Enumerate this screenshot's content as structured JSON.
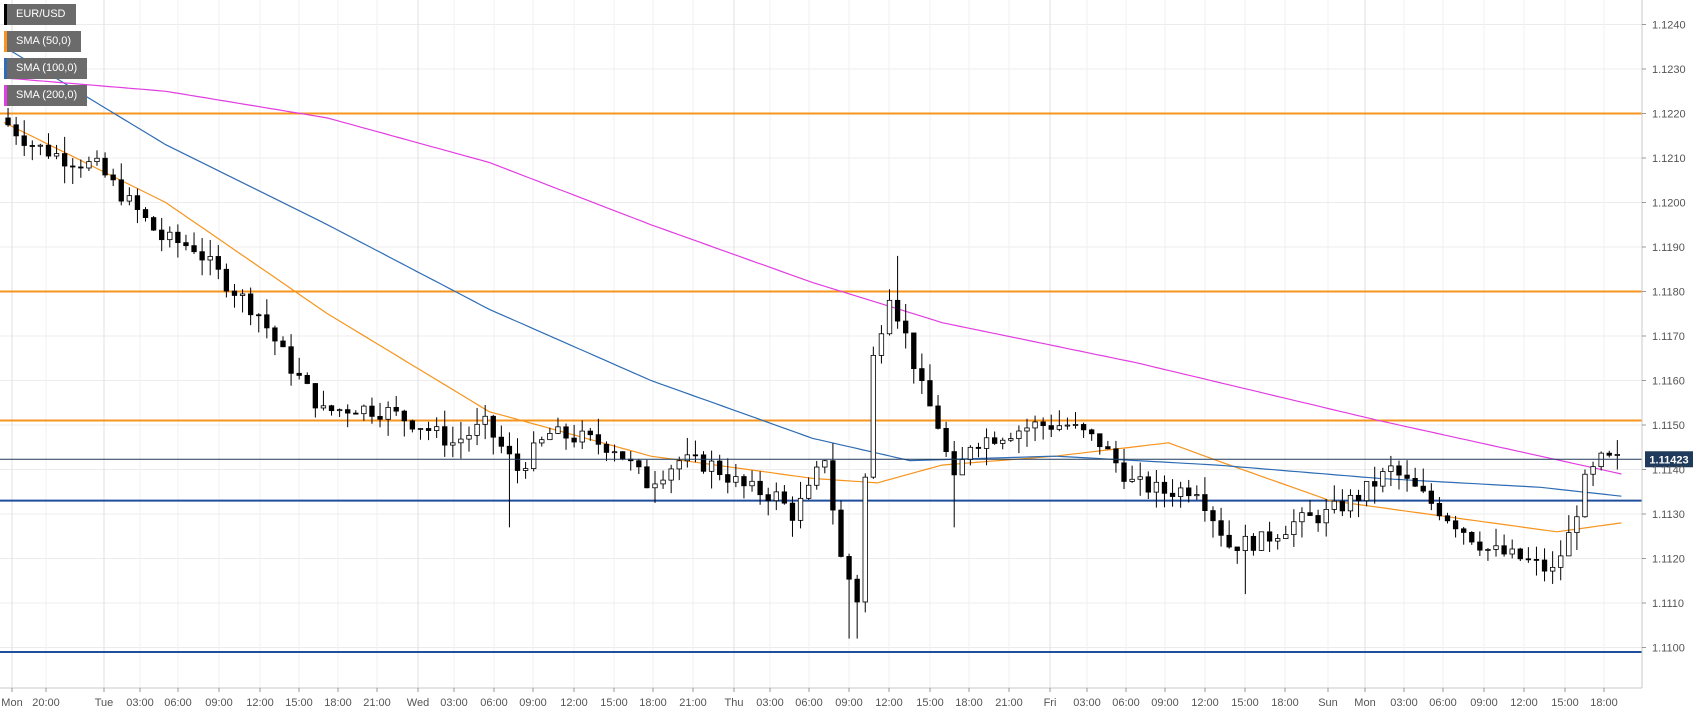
{
  "chart_data": {
    "type": "candlestick",
    "title": "EUR/USD",
    "legend": [
      {
        "label": "EUR/USD",
        "color": "#000000"
      },
      {
        "label": "SMA (50,0)",
        "color": "#f7941d"
      },
      {
        "label": "SMA (100,0)",
        "color": "#2e6db5"
      },
      {
        "label": "SMA (200,0)",
        "color": "#e23de2"
      }
    ],
    "legend_position": "top-left",
    "y_axis": {
      "side": "right",
      "range": [
        1.109,
        1.1245
      ],
      "ticks": [
        "1.1100",
        "1.1110",
        "1.1120",
        "1.1130",
        "1.1140",
        "1.1150",
        "1.1160",
        "1.1170",
        "1.1180",
        "1.1190",
        "1.1200",
        "1.1210",
        "1.1220",
        "1.1230",
        "1.1240"
      ]
    },
    "x_axis": {
      "ticks": [
        "Mon",
        "20:00",
        "Tue",
        "03:00",
        "06:00",
        "09:00",
        "12:00",
        "15:00",
        "18:00",
        "21:00",
        "Wed",
        "03:00",
        "06:00",
        "09:00",
        "12:00",
        "15:00",
        "18:00",
        "21:00",
        "Thu",
        "03:00",
        "06:00",
        "09:00",
        "12:00",
        "15:00",
        "18:00",
        "21:00",
        "Fri",
        "03:00",
        "06:00",
        "09:00",
        "12:00",
        "15:00",
        "18:00",
        "Sun",
        "Mon",
        "03:00",
        "06:00",
        "09:00",
        "12:00",
        "15:00",
        "18:00"
      ],
      "day_separators": [
        "Tue",
        "Wed",
        "Thu",
        "Fri",
        "Mon"
      ]
    },
    "grid": true,
    "current_price": {
      "label": "1.11423",
      "value": 1.11423
    },
    "horizontal_levels": [
      {
        "value": 1.122,
        "color": "#f7941d"
      },
      {
        "value": 1.118,
        "color": "#f7941d"
      },
      {
        "value": 1.1151,
        "color": "#f7941d"
      },
      {
        "value": 1.1133,
        "color": "#1f4e9c"
      },
      {
        "value": 1.1099,
        "color": "#1f4e9c"
      }
    ],
    "price_anchors": [
      [
        0,
        1.1219
      ],
      [
        4,
        1.1213
      ],
      [
        8,
        1.121
      ],
      [
        12,
        1.1208
      ],
      [
        16,
        1.12
      ],
      [
        20,
        1.1192
      ],
      [
        24,
        1.119
      ],
      [
        28,
        1.1182
      ],
      [
        32,
        1.1175
      ],
      [
        36,
        1.1163
      ],
      [
        40,
        1.1153
      ],
      [
        44,
        1.1154
      ],
      [
        48,
        1.1153
      ],
      [
        52,
        1.115
      ],
      [
        56,
        1.1146
      ],
      [
        60,
        1.115
      ],
      [
        64,
        1.114
      ],
      [
        68,
        1.1148
      ],
      [
        72,
        1.1147
      ],
      [
        76,
        1.1145
      ],
      [
        80,
        1.1137
      ],
      [
        84,
        1.1142
      ],
      [
        88,
        1.1141
      ],
      [
        92,
        1.1136
      ],
      [
        96,
        1.1134
      ],
      [
        98,
        1.113
      ],
      [
        100,
        1.1135
      ],
      [
        102,
        1.1143
      ],
      [
        104,
        1.112
      ],
      [
        106,
        1.1111
      ],
      [
        108,
        1.1165
      ],
      [
        110,
        1.118
      ],
      [
        112,
        1.117
      ],
      [
        114,
        1.1158
      ],
      [
        116,
        1.115
      ],
      [
        118,
        1.1137
      ],
      [
        120,
        1.1146
      ],
      [
        124,
        1.1148
      ],
      [
        128,
        1.115
      ],
      [
        132,
        1.115
      ],
      [
        136,
        1.1146
      ],
      [
        140,
        1.1137
      ],
      [
        144,
        1.1135
      ],
      [
        148,
        1.1136
      ],
      [
        152,
        1.1123
      ],
      [
        156,
        1.1124
      ],
      [
        160,
        1.1128
      ],
      [
        164,
        1.113
      ],
      [
        168,
        1.1134
      ],
      [
        172,
        1.114
      ],
      [
        176,
        1.1134
      ],
      [
        180,
        1.1128
      ],
      [
        184,
        1.1122
      ],
      [
        188,
        1.112
      ],
      [
        192,
        1.1117
      ],
      [
        194,
        1.1125
      ],
      [
        196,
        1.1137
      ],
      [
        198,
        1.1142
      ],
      [
        200,
        1.1142
      ]
    ],
    "series": [
      {
        "name": "SMA (50,0)",
        "color": "#f7941d",
        "points": [
          [
            0,
            1.1218
          ],
          [
            20,
            1.12
          ],
          [
            40,
            1.1175
          ],
          [
            60,
            1.1153
          ],
          [
            80,
            1.1143
          ],
          [
            100,
            1.1138
          ],
          [
            108,
            1.1137
          ],
          [
            116,
            1.1141
          ],
          [
            130,
            1.1143
          ],
          [
            144,
            1.1146
          ],
          [
            150,
            1.1142
          ],
          [
            164,
            1.1133
          ],
          [
            180,
            1.1129
          ],
          [
            192,
            1.1126
          ],
          [
            200,
            1.1128
          ]
        ]
      },
      {
        "name": "SMA (100,0)",
        "color": "#2e6db5",
        "points": [
          [
            0,
            1.1235
          ],
          [
            20,
            1.1213
          ],
          [
            40,
            1.1195
          ],
          [
            60,
            1.1176
          ],
          [
            80,
            1.116
          ],
          [
            100,
            1.1147
          ],
          [
            112,
            1.1142
          ],
          [
            130,
            1.1143
          ],
          [
            150,
            1.1141
          ],
          [
            170,
            1.1138
          ],
          [
            190,
            1.1136
          ],
          [
            200,
            1.1134
          ]
        ]
      },
      {
        "name": "SMA (200,0)",
        "color": "#e23de2",
        "points": [
          [
            0,
            1.1228
          ],
          [
            20,
            1.1225
          ],
          [
            40,
            1.1219
          ],
          [
            60,
            1.1209
          ],
          [
            80,
            1.1195
          ],
          [
            100,
            1.1182
          ],
          [
            116,
            1.1173
          ],
          [
            140,
            1.1164
          ],
          [
            170,
            1.1151
          ],
          [
            190,
            1.1143
          ],
          [
            200,
            1.1139
          ]
        ]
      }
    ]
  }
}
